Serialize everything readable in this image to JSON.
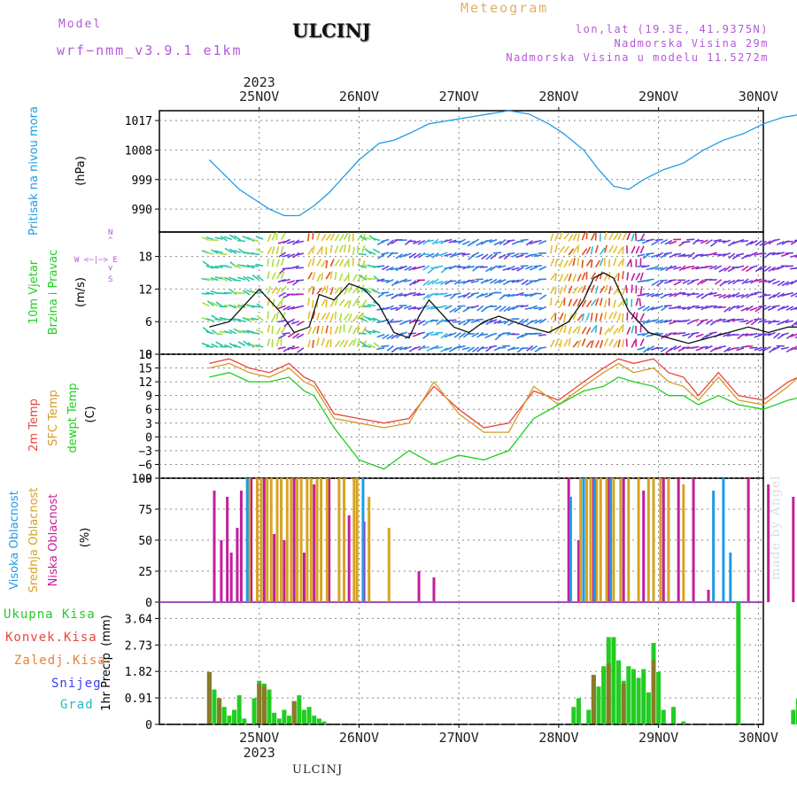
{
  "header": {
    "model_label": "Model",
    "model_name": "wrf−nmm_v3.9.1  e1km",
    "city": "ULCINJ",
    "meteogram": "Meteogram",
    "lonlat": "lon,lat (19.3E, 41.9375N)",
    "altitude": "Nadmorska Visina 29m",
    "model_altitude": "Nadmorska Visina u modelu 11.5272m"
  },
  "footer_city": "ULCINJ",
  "watermark": "made by Angel",
  "colors": {
    "pressure": "#1e9be6",
    "temp2m": "#e8463c",
    "sfc": "#d49a28",
    "dewpt": "#1ecf1e",
    "high": "#1e9be6",
    "mid": "#d6a422",
    "low": "#c21e9e",
    "total_precip": "#22cc22",
    "convective": "#e8463c",
    "frozen": "#e8823c",
    "snow": "#3c3cf0",
    "graupel": "#22b8c8"
  },
  "chart_data": [
    {
      "type": "line",
      "panel": "pressure",
      "ylabel": [
        "Pritisak na nivou mora",
        "(hPa)"
      ],
      "ylim": [
        983,
        1020
      ],
      "yticks": [
        990,
        999,
        1008,
        1017
      ],
      "top_year": "2023",
      "x_day_labels": [
        "25NOV",
        "26NOV",
        "27NOV",
        "28NOV",
        "29NOV",
        "30NOV"
      ],
      "series": [
        {
          "x": [
            0.0,
            0.1,
            0.2,
            0.3,
            0.45,
            0.6,
            0.75,
            0.9,
            1.05,
            1.2,
            1.35,
            1.5,
            1.7,
            1.85,
            2.0,
            2.2,
            2.4,
            2.6,
            2.8,
            3.0,
            3.2,
            3.4,
            3.55,
            3.75,
            3.9,
            4.05,
            4.2,
            4.35,
            4.55,
            4.75,
            4.95,
            5.15,
            5.35,
            5.55,
            5.75,
            5.95,
            6.0
          ],
          "values": [
            1005,
            1002,
            999,
            996,
            993,
            990,
            988,
            988,
            991,
            995,
            1000,
            1005,
            1010,
            1011,
            1013,
            1016,
            1017,
            1018,
            1019,
            1020,
            1019,
            1016,
            1013,
            1008,
            1002,
            997,
            996,
            999,
            1002,
            1004,
            1008,
            1011,
            1013,
            1016,
            1018,
            1019,
            1018
          ]
        }
      ]
    },
    {
      "type": "line",
      "panel": "wind",
      "ylabel": [
        "10m Vjetar",
        "Brzina i Pravac",
        "(m/s)"
      ],
      "ylim": [
        0,
        22.5
      ],
      "yticks": [
        0,
        6,
        12,
        18
      ],
      "compass": "N\n^\nW <− | −> E\nv\nS",
      "series": [
        {
          "name": "speed",
          "x": [
            0.0,
            0.2,
            0.35,
            0.5,
            0.7,
            0.85,
            1.0,
            1.1,
            1.25,
            1.4,
            1.55,
            1.7,
            1.85,
            2.0,
            2.1,
            2.2,
            2.3,
            2.45,
            2.6,
            2.75,
            2.9,
            3.05,
            3.2,
            3.4,
            3.6,
            3.75,
            3.85,
            3.95,
            4.05,
            4.2,
            4.4,
            4.6,
            4.8,
            5.0,
            5.2,
            5.4,
            5.6,
            5.8,
            6.0
          ],
          "values": [
            5,
            6,
            9,
            12,
            8,
            4,
            5,
            11,
            10,
            13,
            12,
            9,
            4,
            3,
            7,
            10,
            8,
            5,
            4,
            6,
            7,
            6,
            5,
            4,
            6,
            10,
            14,
            15,
            14,
            8,
            4,
            3,
            2,
            3,
            4,
            5,
            4,
            5,
            5
          ]
        }
      ]
    },
    {
      "type": "line",
      "panel": "temperature",
      "ylabel": [
        "2m Temp",
        "SFC Temp",
        "dewpt Temp",
        "(C)"
      ],
      "ylim": [
        -9,
        18
      ],
      "yticks": [
        -9,
        -6,
        -3,
        0,
        3,
        6,
        9,
        12,
        15,
        18
      ],
      "series": [
        {
          "name": "2m Temp",
          "x": [
            0.0,
            0.2,
            0.4,
            0.6,
            0.8,
            0.95,
            1.05,
            1.25,
            1.5,
            1.75,
            2.0,
            2.25,
            2.5,
            2.75,
            3.0,
            3.25,
            3.5,
            3.75,
            3.95,
            4.1,
            4.25,
            4.45,
            4.6,
            4.75,
            4.9,
            5.1,
            5.3,
            5.55,
            5.8,
            6.0
          ],
          "values": [
            16,
            17,
            15,
            14,
            16,
            13,
            12,
            5,
            4,
            3,
            4,
            11,
            6,
            2,
            3,
            10,
            8,
            12,
            15,
            17,
            16,
            17,
            14,
            13,
            9,
            14,
            9,
            8,
            12,
            14
          ]
        },
        {
          "name": "SFC Temp",
          "x": [
            0.0,
            0.2,
            0.4,
            0.6,
            0.8,
            0.95,
            1.05,
            1.25,
            1.5,
            1.75,
            2.0,
            2.25,
            2.5,
            2.75,
            3.0,
            3.25,
            3.5,
            3.75,
            3.95,
            4.1,
            4.25,
            4.45,
            4.6,
            4.75,
            4.9,
            5.1,
            5.3,
            5.55,
            5.8,
            6.0
          ],
          "values": [
            15,
            16,
            14,
            13,
            15,
            12,
            11,
            4,
            3,
            2,
            3,
            12,
            5,
            1,
            1,
            11,
            7,
            11,
            14,
            16,
            14,
            15,
            12,
            11,
            8,
            13,
            8,
            7,
            11,
            15
          ]
        },
        {
          "name": "dewpt Temp",
          "x": [
            0.0,
            0.2,
            0.4,
            0.6,
            0.8,
            0.95,
            1.05,
            1.25,
            1.5,
            1.75,
            2.0,
            2.25,
            2.5,
            2.75,
            3.0,
            3.25,
            3.5,
            3.75,
            3.95,
            4.1,
            4.25,
            4.45,
            4.6,
            4.75,
            4.9,
            5.1,
            5.3,
            5.55,
            5.8,
            6.0
          ],
          "values": [
            13,
            14,
            12,
            12,
            13,
            10,
            9,
            2,
            -5,
            -7,
            -3,
            -6,
            -4,
            -5,
            -3,
            4,
            7,
            10,
            11,
            13,
            12,
            11,
            9,
            9,
            7,
            9,
            7,
            6,
            8,
            9
          ]
        }
      ]
    },
    {
      "type": "bar",
      "panel": "cloud",
      "ylabel": [
        "Visoka Oblacnost",
        "Srednja Oblacnost",
        "Niska Oblacnost",
        "(%)"
      ],
      "ylim": [
        0,
        100
      ],
      "yticks": [
        0,
        25,
        50,
        75,
        100
      ],
      "series": [
        {
          "name": "Visoka Oblacnost",
          "x": [
            0.38,
            1.54,
            3.62,
            3.75,
            3.86,
            4.02,
            5.05,
            5.15,
            5.22
          ],
          "values": [
            100,
            100,
            85,
            100,
            100,
            100,
            90,
            100,
            40
          ]
        },
        {
          "name": "Srednja Oblacnost",
          "x": [
            0.4,
            0.48,
            0.52,
            0.58,
            0.62,
            0.68,
            0.72,
            0.78,
            0.82,
            0.88,
            0.92,
            0.98,
            1.02,
            1.08,
            1.12,
            1.18,
            1.3,
            1.35,
            1.45,
            1.48,
            1.6,
            1.8,
            3.72,
            3.78,
            3.82,
            3.88,
            3.92,
            3.98,
            4.05,
            4.12,
            4.2,
            4.3,
            4.4,
            4.45,
            4.52,
            4.6,
            4.75
          ],
          "values": [
            100,
            100,
            100,
            100,
            100,
            100,
            100,
            100,
            100,
            100,
            100,
            100,
            100,
            100,
            100,
            100,
            100,
            100,
            100,
            100,
            85,
            60,
            100,
            100,
            100,
            100,
            100,
            100,
            100,
            100,
            100,
            100,
            100,
            100,
            100,
            100,
            95
          ]
        },
        {
          "name": "Niska Oblacnost",
          "x": [
            0.05,
            0.12,
            0.18,
            0.22,
            0.28,
            0.32,
            0.42,
            0.55,
            0.65,
            0.75,
            0.85,
            0.95,
            1.05,
            1.2,
            1.4,
            1.55,
            2.1,
            2.25,
            3.6,
            3.7,
            3.85,
            4.0,
            4.15,
            4.35,
            4.55,
            4.7,
            4.85,
            5.0,
            5.4,
            5.6,
            5.85,
            5.95
          ],
          "values": [
            90,
            50,
            85,
            40,
            60,
            90,
            100,
            100,
            55,
            50,
            100,
            40,
            95,
            100,
            70,
            65,
            25,
            20,
            100,
            50,
            100,
            100,
            100,
            90,
            100,
            100,
            100,
            10,
            100,
            95,
            85,
            55
          ]
        }
      ]
    },
    {
      "type": "bar",
      "panel": "precip",
      "ylabel": [
        "1hr Precip",
        "(mm)"
      ],
      "legend": [
        "Ukupna Kisa",
        "Konvek.Kisa",
        "Zaledj.Kisa",
        "Snijeg",
        "Grad"
      ],
      "ylim": [
        0,
        4.2
      ],
      "yticks": [
        0,
        0.91,
        1.82,
        2.73,
        3.64
      ],
      "ytick_labels": [
        "0",
        "0.91",
        "1.82",
        "2.73",
        "3.64"
      ],
      "bottom_year": "2023",
      "series": [
        {
          "name": "Ukupna Kisa",
          "x": [
            0.0,
            0.05,
            0.1,
            0.15,
            0.2,
            0.25,
            0.3,
            0.35,
            0.45,
            0.5,
            0.55,
            0.6,
            0.65,
            0.7,
            0.75,
            0.8,
            0.85,
            0.9,
            0.95,
            1.0,
            1.05,
            1.1,
            1.15,
            3.65,
            3.7,
            3.8,
            3.85,
            3.9,
            3.95,
            4.0,
            4.05,
            4.1,
            4.15,
            4.2,
            4.25,
            4.3,
            4.35,
            4.4,
            4.45,
            4.5,
            4.55,
            4.65,
            4.75,
            5.3,
            5.85,
            5.9,
            5.95
          ],
          "values": [
            1.8,
            1.2,
            0.9,
            0.6,
            0.3,
            0.5,
            1.0,
            0.2,
            0.9,
            1.5,
            1.4,
            1.2,
            0.4,
            0.2,
            0.5,
            0.3,
            0.8,
            1.0,
            0.5,
            0.6,
            0.3,
            0.2,
            0.1,
            0.6,
            0.9,
            0.5,
            1.7,
            1.3,
            2.0,
            3.0,
            3.0,
            2.2,
            1.5,
            2.0,
            1.9,
            1.6,
            1.9,
            1.1,
            2.8,
            1.8,
            0.5,
            0.6,
            0.1,
            4.3,
            0.5,
            0.9,
            2.2
          ]
        },
        {
          "name": "Konvek.Kisa",
          "x": [
            0.0,
            0.1,
            0.5,
            0.55,
            0.85,
            3.85,
            4.0,
            4.15,
            4.45
          ],
          "values": [
            1.8,
            0.9,
            1.4,
            1.3,
            0.8,
            1.7,
            2.1,
            1.4,
            2.2
          ]
        }
      ]
    }
  ]
}
